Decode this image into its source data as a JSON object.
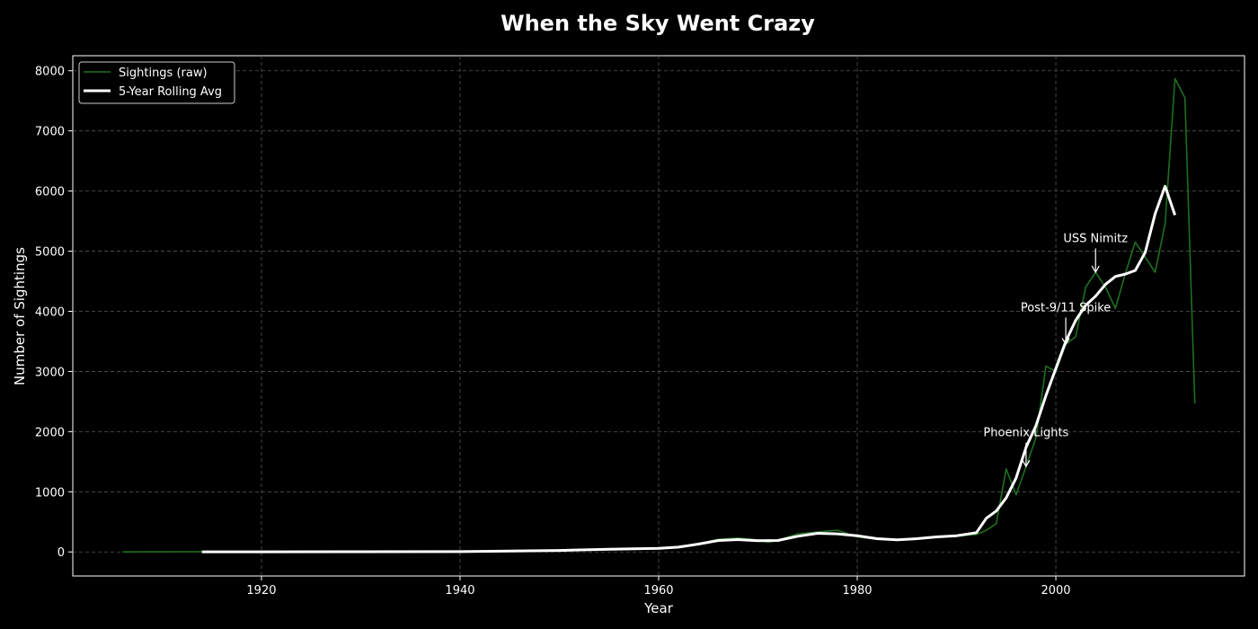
{
  "chart_data": {
    "type": "line",
    "title": "When the Sky Went Crazy",
    "xlabel": "Year",
    "ylabel": "Number of Sightings",
    "xlim": [
      1901,
      2019
    ],
    "ylim": [
      -400,
      8250
    ],
    "xticks": [
      1920,
      1940,
      1960,
      1980,
      2000
    ],
    "yticks": [
      0,
      1000,
      2000,
      3000,
      4000,
      5000,
      6000,
      7000,
      8000
    ],
    "grid": true,
    "legend_position": "top-left",
    "series": [
      {
        "name": "Sightings (raw)",
        "color": "#1f6f1f",
        "points": [
          [
            1906,
            1
          ],
          [
            1910,
            2
          ],
          [
            1914,
            3
          ],
          [
            1920,
            3
          ],
          [
            1925,
            3
          ],
          [
            1930,
            3
          ],
          [
            1935,
            4
          ],
          [
            1940,
            8
          ],
          [
            1942,
            10
          ],
          [
            1944,
            15
          ],
          [
            1945,
            22
          ],
          [
            1947,
            25
          ],
          [
            1949,
            25
          ],
          [
            1950,
            30
          ],
          [
            1952,
            40
          ],
          [
            1954,
            45
          ],
          [
            1956,
            50
          ],
          [
            1958,
            55
          ],
          [
            1960,
            60
          ],
          [
            1962,
            75
          ],
          [
            1964,
            130
          ],
          [
            1966,
            210
          ],
          [
            1968,
            230
          ],
          [
            1970,
            200
          ],
          [
            1971,
            160
          ],
          [
            1972,
            190
          ],
          [
            1974,
            300
          ],
          [
            1976,
            330
          ],
          [
            1978,
            360
          ],
          [
            1980,
            250
          ],
          [
            1982,
            210
          ],
          [
            1984,
            200
          ],
          [
            1986,
            230
          ],
          [
            1988,
            250
          ],
          [
            1990,
            260
          ],
          [
            1992,
            290
          ],
          [
            1993,
            360
          ],
          [
            1994,
            470
          ],
          [
            1995,
            1380
          ],
          [
            1996,
            950
          ],
          [
            1997,
            1420
          ],
          [
            1998,
            1900
          ],
          [
            1999,
            3090
          ],
          [
            2000,
            3000
          ],
          [
            2001,
            3450
          ],
          [
            2002,
            3580
          ],
          [
            2003,
            4400
          ],
          [
            2004,
            4650
          ],
          [
            2005,
            4400
          ],
          [
            2006,
            4050
          ],
          [
            2007,
            4630
          ],
          [
            2008,
            5150
          ],
          [
            2009,
            4900
          ],
          [
            2010,
            4650
          ],
          [
            2011,
            5450
          ],
          [
            2012,
            7870
          ],
          [
            2013,
            7550
          ],
          [
            2014,
            2470
          ]
        ]
      },
      {
        "name": "5-Year Rolling Avg",
        "color": "#ffffff",
        "points": [
          [
            1914,
            2
          ],
          [
            1920,
            2
          ],
          [
            1930,
            3
          ],
          [
            1940,
            5
          ],
          [
            1945,
            15
          ],
          [
            1950,
            25
          ],
          [
            1955,
            45
          ],
          [
            1960,
            60
          ],
          [
            1962,
            80
          ],
          [
            1964,
            130
          ],
          [
            1966,
            190
          ],
          [
            1968,
            205
          ],
          [
            1970,
            185
          ],
          [
            1972,
            190
          ],
          [
            1974,
            260
          ],
          [
            1976,
            310
          ],
          [
            1978,
            300
          ],
          [
            1980,
            270
          ],
          [
            1982,
            220
          ],
          [
            1984,
            200
          ],
          [
            1986,
            220
          ],
          [
            1988,
            250
          ],
          [
            1990,
            270
          ],
          [
            1992,
            320
          ],
          [
            1993,
            560
          ],
          [
            1994,
            680
          ],
          [
            1995,
            900
          ],
          [
            1996,
            1230
          ],
          [
            1997,
            1740
          ],
          [
            1998,
            2100
          ],
          [
            1999,
            2600
          ],
          [
            2000,
            3050
          ],
          [
            2001,
            3500
          ],
          [
            2002,
            3850
          ],
          [
            2003,
            4100
          ],
          [
            2004,
            4250
          ],
          [
            2005,
            4450
          ],
          [
            2006,
            4580
          ],
          [
            2007,
            4620
          ],
          [
            2008,
            4680
          ],
          [
            2009,
            4980
          ],
          [
            2010,
            5620
          ],
          [
            2011,
            6080
          ],
          [
            2012,
            5600
          ]
        ]
      }
    ],
    "annotations": [
      {
        "id": "phoenix-lights",
        "text": "Phoenix Lights",
        "x": 1997,
        "y": 1420,
        "text_y": 1920
      },
      {
        "id": "post-911",
        "text": "Post-9/11 Spike",
        "x": 2001,
        "y": 3450,
        "text_y": 4000
      },
      {
        "id": "uss-nimitz",
        "text": "USS Nimitz",
        "x": 2004,
        "y": 4650,
        "text_y": 5150
      }
    ]
  }
}
